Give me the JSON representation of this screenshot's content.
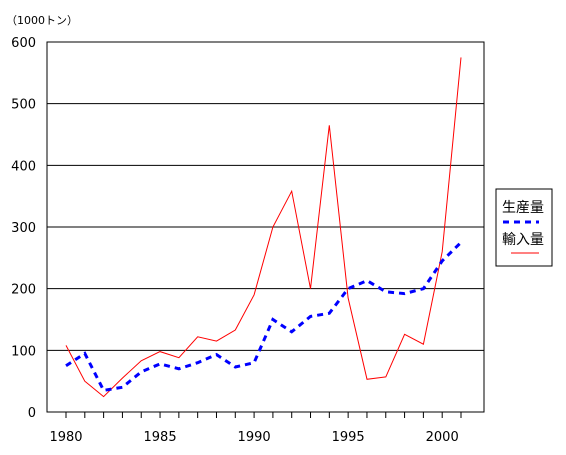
{
  "chart_data": {
    "type": "line",
    "unit_label": "（1000トン）",
    "x": [
      1980,
      1981,
      1982,
      1983,
      1984,
      1985,
      1986,
      1987,
      1988,
      1989,
      1990,
      1991,
      1992,
      1993,
      1994,
      1995,
      1996,
      1997,
      1998,
      1999,
      2000,
      2001
    ],
    "xticks": [
      "1980",
      "1985",
      "1990",
      "1995",
      "2000"
    ],
    "yticks": [
      "0",
      "100",
      "200",
      "300",
      "400",
      "500",
      "600"
    ],
    "ylim": [
      0,
      600
    ],
    "grid": "horizontal",
    "legend_placement": "right",
    "series": [
      {
        "name": "生産量",
        "color": "#0000ff",
        "style": "dashed",
        "values": [
          75,
          95,
          35,
          40,
          65,
          78,
          70,
          80,
          93,
          73,
          80,
          150,
          130,
          155,
          160,
          200,
          213,
          195,
          192,
          200,
          245,
          275
        ]
      },
      {
        "name": "輸入量",
        "color": "#ff0000",
        "style": "solid",
        "values": [
          108,
          50,
          25,
          55,
          83,
          98,
          88,
          122,
          115,
          133,
          190,
          300,
          358,
          200,
          465,
          185,
          53,
          57,
          126,
          110,
          260,
          575
        ]
      }
    ]
  }
}
